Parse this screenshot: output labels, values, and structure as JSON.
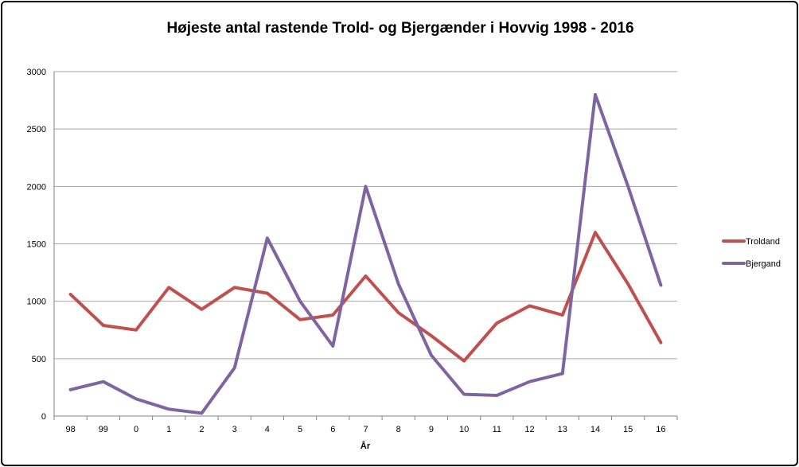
{
  "chart_data": {
    "type": "line",
    "title": "Højeste antal rastende Trold- og Bjergænder i Hovvig 1998 - 2016",
    "xlabel": "År",
    "ylabel": "",
    "categories": [
      "98",
      "99",
      "0",
      "1",
      "2",
      "3",
      "4",
      "5",
      "6",
      "7",
      "8",
      "9",
      "10",
      "11",
      "12",
      "13",
      "14",
      "15",
      "16"
    ],
    "ylim": [
      0,
      3000
    ],
    "yticks": [
      0,
      500,
      1000,
      1500,
      2000,
      2500,
      3000
    ],
    "grid": true,
    "legend_position": "right",
    "series": [
      {
        "name": "Troldand",
        "color": "#c0504d",
        "values": [
          1060,
          790,
          750,
          1120,
          930,
          1120,
          1070,
          840,
          880,
          1220,
          900,
          700,
          480,
          810,
          960,
          880,
          1600,
          1150,
          640
        ]
      },
      {
        "name": "Bjergand",
        "color": "#8064a2",
        "values": [
          230,
          300,
          150,
          60,
          25,
          420,
          1550,
          1000,
          610,
          2000,
          1150,
          530,
          190,
          180,
          300,
          370,
          2800,
          2000,
          1140
        ]
      }
    ]
  }
}
